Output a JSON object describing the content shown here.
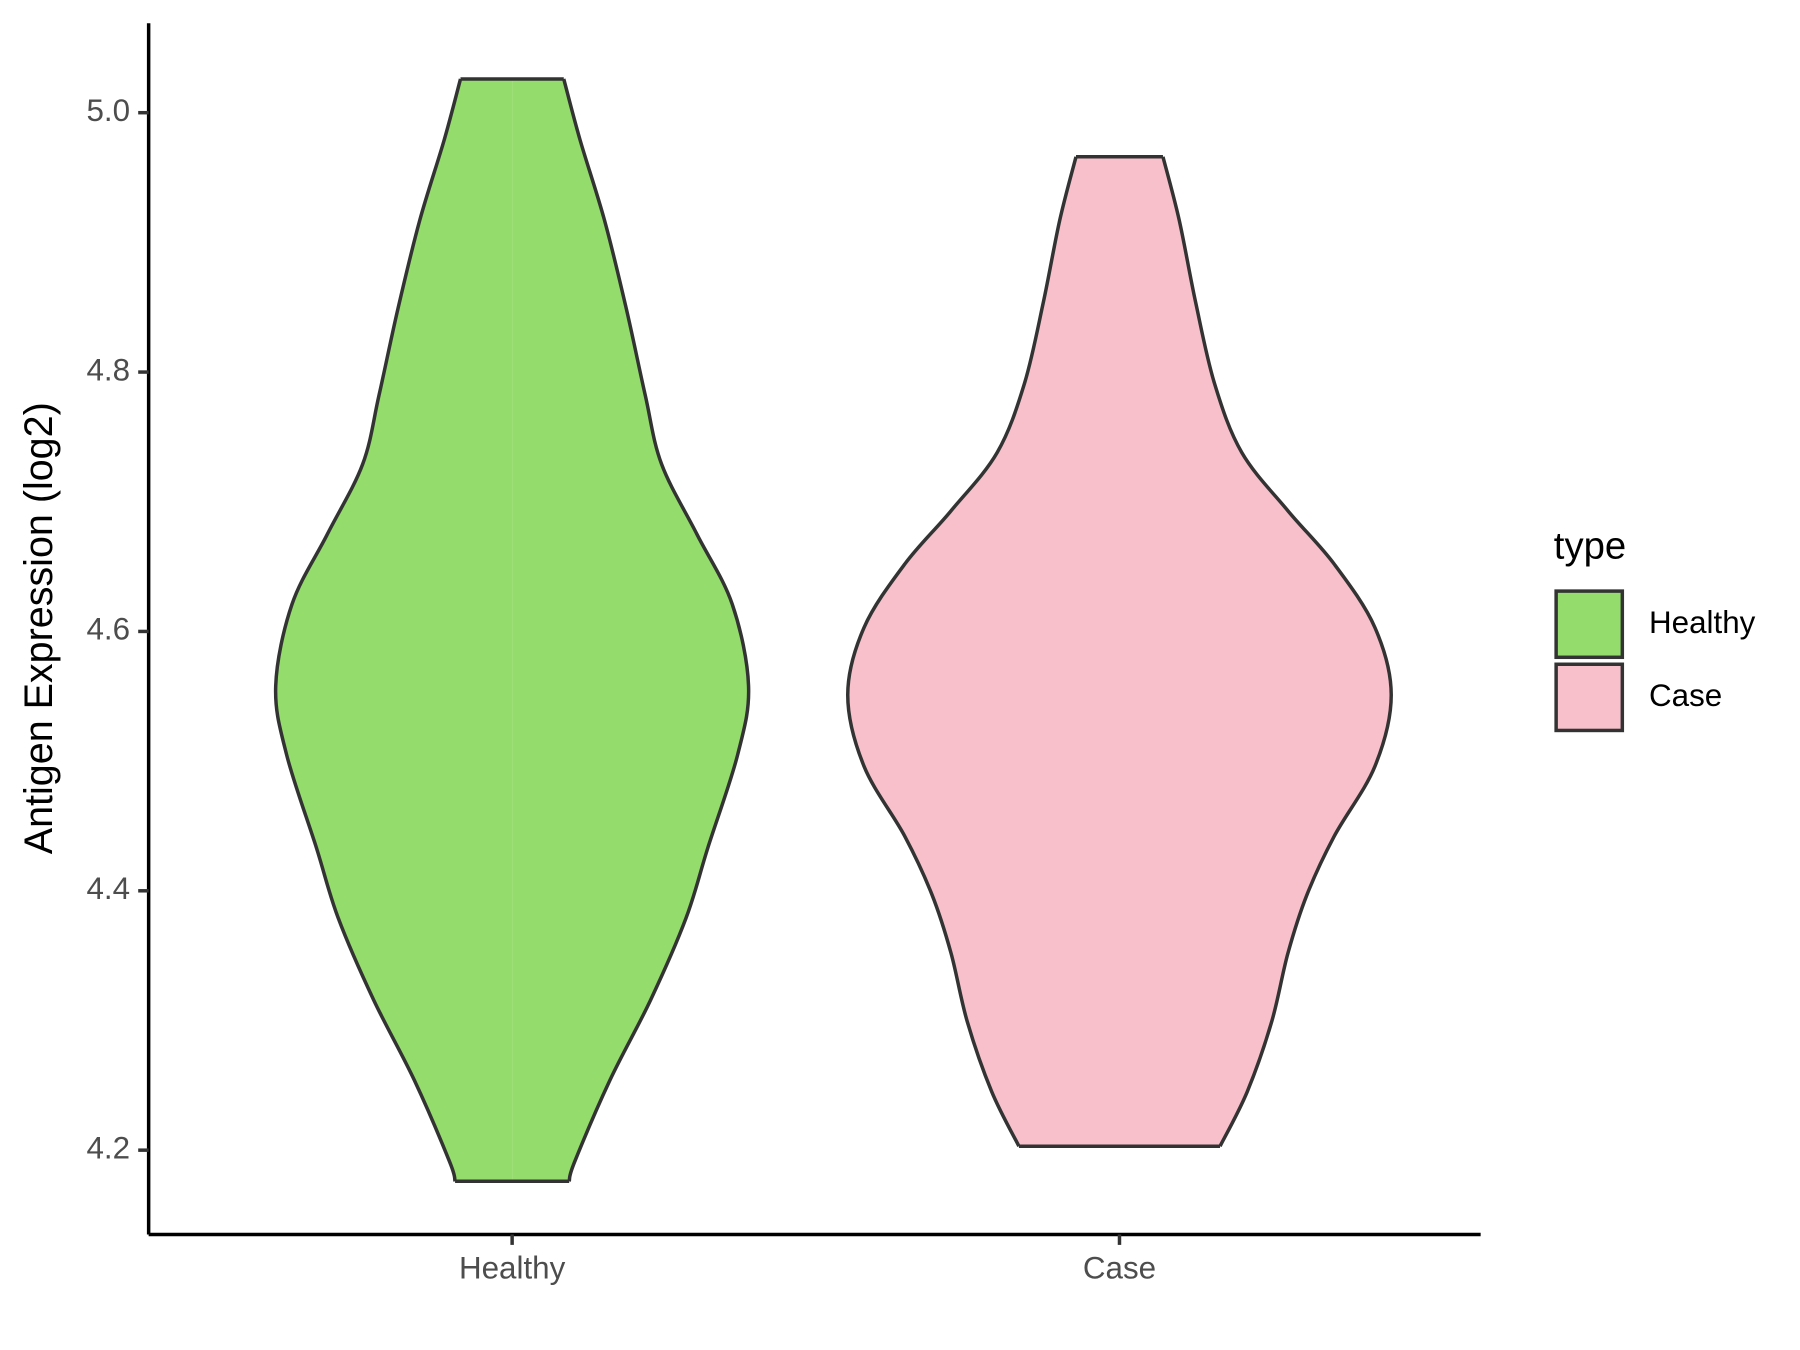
{
  "chart_data": {
    "type": "violin",
    "y_label": "Antigen Expression (log2)",
    "categories": [
      "Healthy",
      "Case"
    ],
    "ylim": [
      4.135,
      5.069
    ],
    "yticks": [
      {
        "value": 4.2,
        "label": "4.2"
      },
      {
        "value": 4.4,
        "label": "4.4"
      },
      {
        "value": 4.6,
        "label": "4.6"
      },
      {
        "value": 4.8,
        "label": "4.8"
      },
      {
        "value": 5.0,
        "label": "5.0"
      }
    ],
    "legend_title": "type",
    "legend_position": "right",
    "series": [
      {
        "name": "Healthy",
        "color": "#94dc6b",
        "y": [
          5.026,
          4.979,
          4.917,
          4.849,
          4.782,
          4.729,
          4.675,
          4.621,
          4.558,
          4.505,
          4.433,
          4.379,
          4.316,
          4.254,
          4.191,
          4.176
        ],
        "density": [
          0.19,
          0.25,
          0.34,
          0.42,
          0.49,
          0.55,
          0.68,
          0.81,
          0.87,
          0.83,
          0.72,
          0.64,
          0.51,
          0.36,
          0.23,
          0.21
        ]
      },
      {
        "name": "Case",
        "color": "#f7c0cb",
        "y": [
          4.966,
          4.917,
          4.854,
          4.791,
          4.738,
          4.693,
          4.652,
          4.603,
          4.551,
          4.496,
          4.442,
          4.397,
          4.352,
          4.299,
          4.245,
          4.203
        ],
        "density": [
          0.16,
          0.22,
          0.28,
          0.35,
          0.45,
          0.62,
          0.79,
          0.94,
          1,
          0.94,
          0.79,
          0.69,
          0.62,
          0.56,
          0.47,
          0.37
        ]
      }
    ]
  }
}
